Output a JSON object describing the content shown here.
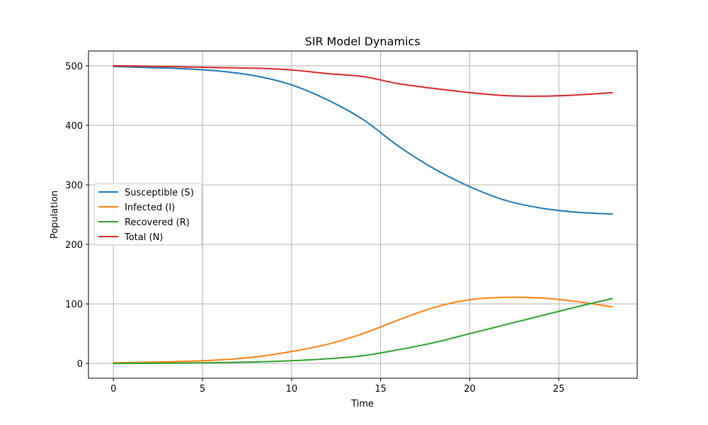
{
  "chart_data": {
    "type": "line",
    "title": "SIR Model Dynamics",
    "xlabel": "Time",
    "ylabel": "Population",
    "xlim": [
      -1.4,
      29.4
    ],
    "ylim": [
      -24.9,
      524.9
    ],
    "xticks": [
      0,
      5,
      10,
      15,
      20,
      25
    ],
    "yticks": [
      0,
      100,
      200,
      300,
      400,
      500
    ],
    "grid": true,
    "legend_position": "center-left",
    "x": [
      0,
      2,
      4,
      6,
      8,
      10,
      12,
      14,
      16,
      18,
      20,
      22,
      24,
      26,
      28
    ],
    "series": [
      {
        "name": "Susceptible (S)",
        "color": "#1f77b4",
        "values": [
          499,
          497,
          495,
          491,
          483,
          468,
          443,
          410,
          365,
          327,
          297,
          274,
          261,
          254,
          251
        ]
      },
      {
        "name": "Infected (I)",
        "color": "#ff7f0e",
        "values": [
          1,
          2,
          3.5,
          6,
          11,
          20,
          32,
          50,
          73,
          94,
          107,
          111,
          110,
          104,
          95
        ]
      },
      {
        "name": "Recovered (R)",
        "color": "#2ca02c",
        "values": [
          0,
          0.3,
          0.7,
          1.4,
          2.5,
          4.5,
          7.8,
          13,
          23,
          35,
          50,
          65,
          80,
          95,
          109
        ]
      },
      {
        "name": "Total (N)",
        "color": "#d62728",
        "values": [
          500,
          499.3,
          498.2,
          497,
          496,
          493,
          487,
          482,
          470,
          462,
          455,
          450,
          449,
          451,
          455
        ]
      }
    ]
  }
}
